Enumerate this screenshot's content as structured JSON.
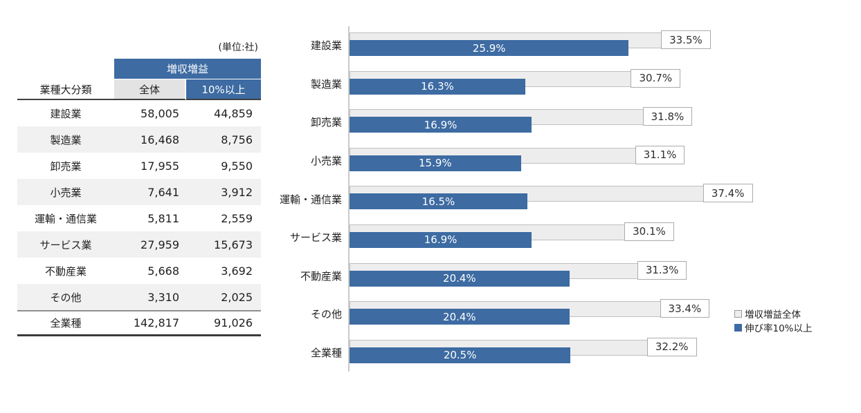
{
  "table": {
    "unit_label": "(単位:社)",
    "group_header": "増収増益",
    "col_headers": [
      "業種大分類",
      "全体",
      "10%以上"
    ],
    "rows": [
      {
        "label": "建設業",
        "total": "58,005",
        "ten_plus": "44,859"
      },
      {
        "label": "製造業",
        "total": "16,468",
        "ten_plus": "8,756"
      },
      {
        "label": "卸売業",
        "total": "17,955",
        "ten_plus": "9,550"
      },
      {
        "label": "小売業",
        "total": "7,641",
        "ten_plus": "3,912"
      },
      {
        "label": "運輸・通信業",
        "total": "5,811",
        "ten_plus": "2,559"
      },
      {
        "label": "サービス業",
        "total": "27,959",
        "ten_plus": "15,673"
      },
      {
        "label": "不動産業",
        "total": "5,668",
        "ten_plus": "3,692"
      },
      {
        "label": "その他",
        "total": "3,310",
        "ten_plus": "2,025"
      },
      {
        "label": "全業種",
        "total": "142,817",
        "ten_plus": "91,026"
      }
    ]
  },
  "chart_data": {
    "type": "bar",
    "orientation": "horizontal",
    "title": "",
    "xlabel": "",
    "ylabel": "",
    "xlim": [
      0,
      40
    ],
    "grid": false,
    "legend_position": "right-bottom",
    "value_suffix": "%",
    "categories": [
      "建設業",
      "製造業",
      "卸売業",
      "小売業",
      "運輸・通信業",
      "サービス業",
      "不動産業",
      "その他",
      "全業種"
    ],
    "series": [
      {
        "name": "増収増益全体",
        "color": "#ededed",
        "values": [
          33.5,
          30.7,
          31.8,
          31.1,
          37.4,
          30.1,
          31.3,
          33.4,
          32.2
        ]
      },
      {
        "name": "伸び率10%以上",
        "color": "#3d6ba2",
        "values": [
          25.9,
          16.3,
          16.9,
          15.9,
          16.5,
          16.9,
          20.4,
          20.4,
          20.5
        ]
      }
    ]
  },
  "colors": {
    "accent_blue": "#3d6ba2",
    "bar_gray": "#ededed",
    "row_shade": "#f1f1f1"
  }
}
